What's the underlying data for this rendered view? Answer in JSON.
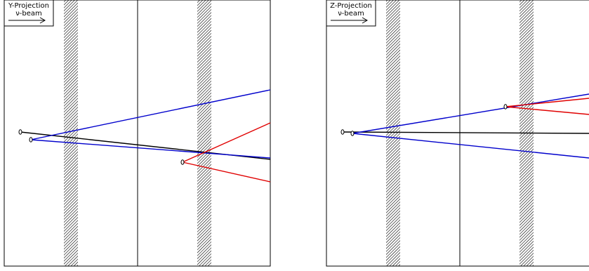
{
  "panels": [
    {
      "id": "y",
      "label": "Y-Projection",
      "beam_label": "ν-beam"
    },
    {
      "id": "z",
      "label": "Z-Projection",
      "beam_label": "ν-beam"
    }
  ],
  "colors": {
    "frame": "#000000",
    "primary_track": "#000000",
    "blue_tracks": "#0000cc",
    "red_tracks": "#e00000",
    "hatch": "#000000"
  },
  "icons": [
    "beam-direction-arrow-icon",
    "vertex-marker-icon"
  ]
}
